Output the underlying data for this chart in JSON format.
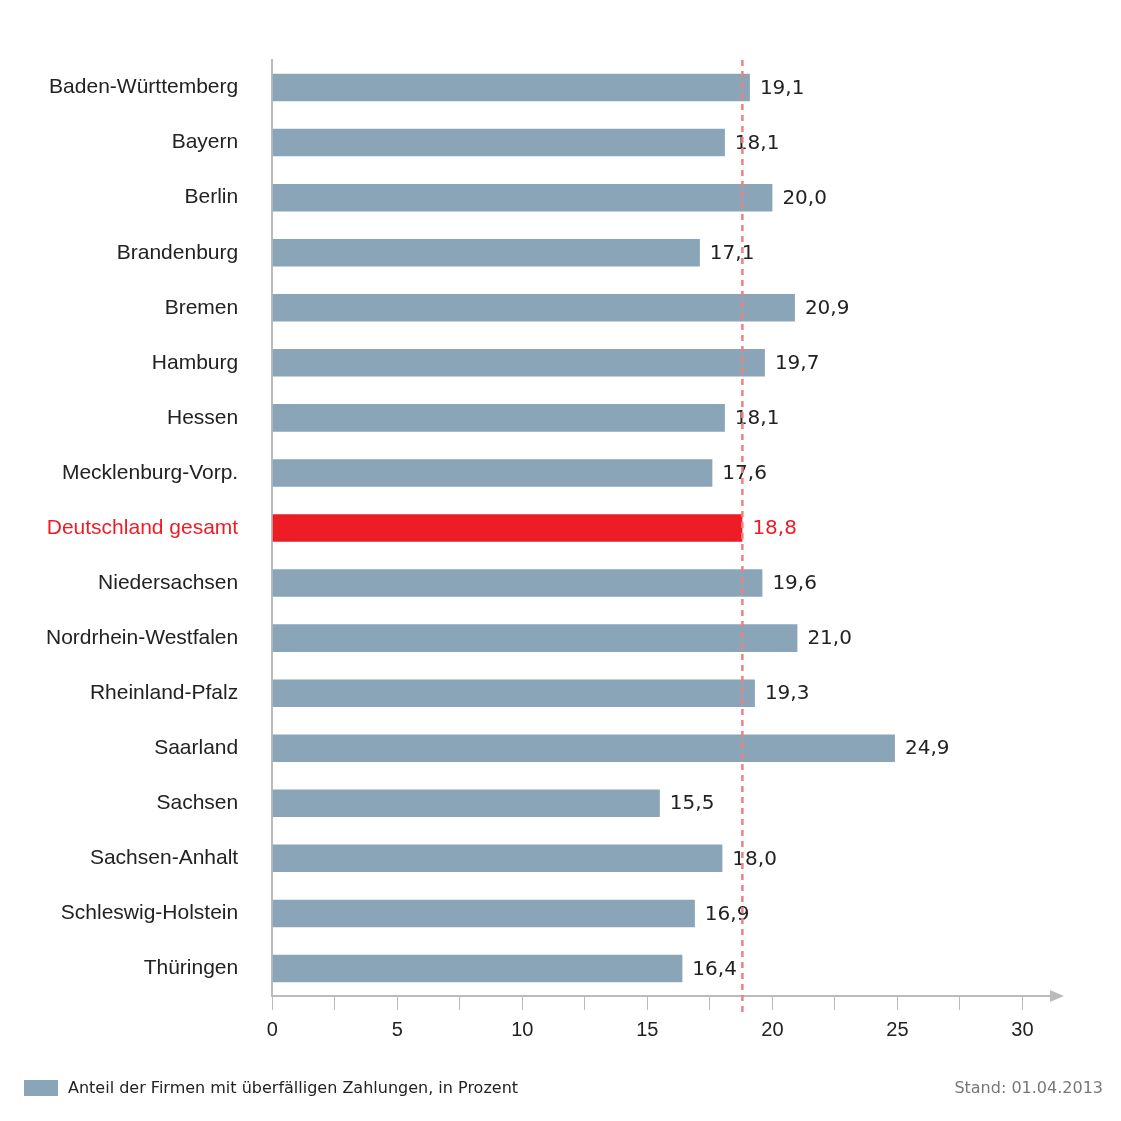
{
  "chart_data": {
    "type": "bar",
    "orientation": "horizontal",
    "categories": [
      "Baden-Württemberg",
      "Bayern",
      "Berlin",
      "Brandenburg",
      "Bremen",
      "Hamburg",
      "Hessen",
      "Mecklenburg-Vorp.",
      "Deutschland gesamt",
      "Niedersachsen",
      "Nordrhein-Westfalen",
      "Rheinland-Pfalz",
      "Saarland",
      "Sachsen",
      "Sachsen-Anhalt",
      "Schleswig-Holstein",
      "Thüringen"
    ],
    "series": [
      {
        "name": "Anteil der Firmen mit überfälligen Zahlungen, in Prozent",
        "color": "#8aa4b8",
        "colors": [
          "#8aa4b8",
          "#8aa4b8",
          "#8aa4b8",
          "#8aa4b8",
          "#8aa4b8",
          "#8aa4b8",
          "#8aa4b8",
          "#8aa4b8",
          "#ee1c25",
          "#8aa4b8",
          "#8aa4b8",
          "#8aa4b8",
          "#8aa4b8",
          "#8aa4b8",
          "#8aa4b8",
          "#8aa4b8",
          "#8aa4b8"
        ],
        "values": [
          19.1,
          18.1,
          20.0,
          17.1,
          20.9,
          19.7,
          18.1,
          17.6,
          18.8,
          19.6,
          21.0,
          19.3,
          24.9,
          15.5,
          18.0,
          16.9,
          16.4
        ],
        "value_labels": [
          "19,1",
          "18,1",
          "20,0",
          "17,1",
          "20,9",
          "19,7",
          "18,1",
          "17,6",
          "18,8",
          "19,6",
          "21,0",
          "19,3",
          "24,9",
          "15,5",
          "18,0",
          "16,9",
          "16,4"
        ]
      }
    ],
    "xlim": [
      0,
      31.5
    ],
    "xticks": [
      0,
      {
        "value": 2.5,
        "label": null
      },
      5,
      {
        "value": 7.5,
        "label": null
      },
      10,
      {
        "value": 12.5,
        "label": null
      },
      15,
      {
        "value": 17.5,
        "label": null
      },
      20,
      {
        "value": 22.5,
        "label": null
      },
      25,
      {
        "value": 27.5,
        "label": null
      },
      30
    ],
    "ref_lines": [
      {
        "axis": "x",
        "value": 18.8,
        "color": "#f08080",
        "line_style": "dashed"
      }
    ],
    "grid": false,
    "legend": "bottom",
    "annotations": [
      "Stand: 01.04.2013"
    ]
  }
}
